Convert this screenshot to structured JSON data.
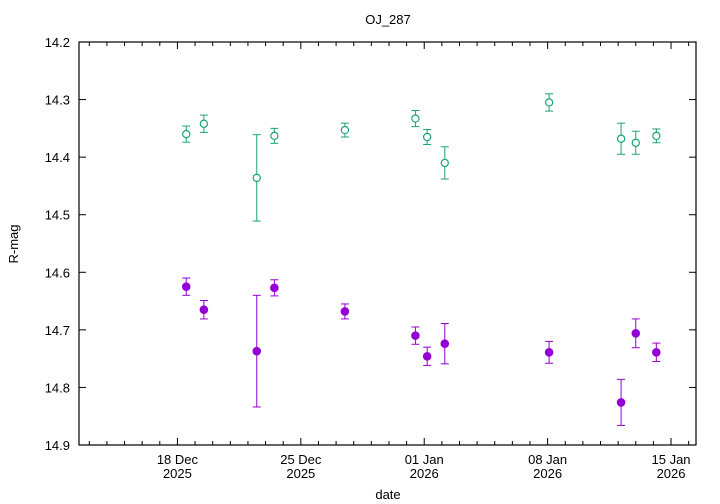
{
  "chart_data": {
    "type": "scatter",
    "title": "OJ_287",
    "xlabel": "date",
    "ylabel": "R-mag",
    "ylim": [
      14.2,
      14.9
    ],
    "y_inverted": true,
    "xlim": [
      "2025-12-12T10:00",
      "2026-01-16T10:00"
    ],
    "x_ticks": [
      {
        "date": "2025-12-18",
        "line1": "18 Dec",
        "line2": "2025"
      },
      {
        "date": "2025-12-25",
        "line1": "25 Dec",
        "line2": "2025"
      },
      {
        "date": "2026-01-01",
        "line1": "01 Jan",
        "line2": "2026"
      },
      {
        "date": "2026-01-08",
        "line1": "08 Jan",
        "line2": "2026"
      },
      {
        "date": "2026-01-15",
        "line1": "15 Jan",
        "line2": "2026"
      }
    ],
    "y_ticks": [
      "14.2",
      "14.3",
      "14.4",
      "14.5",
      "14.6",
      "14.7",
      "14.8",
      "14.9"
    ],
    "grid": false,
    "series": [
      {
        "marker": "open-circle",
        "color": "#1aa37a",
        "points": [
          {
            "x": "2025-12-18T12:00",
            "y": 14.36,
            "err": 0.014
          },
          {
            "x": "2025-12-19T12:00",
            "y": 14.342,
            "err": 0.015
          },
          {
            "x": "2025-12-22T12:00",
            "y": 14.436,
            "err": 0.075
          },
          {
            "x": "2025-12-23T12:00",
            "y": 14.363,
            "err": 0.013
          },
          {
            "x": "2025-12-27T12:00",
            "y": 14.353,
            "err": 0.012
          },
          {
            "x": "2025-12-31T12:00",
            "y": 14.333,
            "err": 0.014
          },
          {
            "x": "2026-01-01T04:00",
            "y": 14.365,
            "err": 0.013
          },
          {
            "x": "2026-01-02T04:00",
            "y": 14.41,
            "err": 0.028
          },
          {
            "x": "2026-01-08T02:00",
            "y": 14.305,
            "err": 0.015
          },
          {
            "x": "2026-01-12T04:00",
            "y": 14.368,
            "err": 0.027
          },
          {
            "x": "2026-01-13T00:00",
            "y": 14.375,
            "err": 0.02
          },
          {
            "x": "2026-01-14T04:00",
            "y": 14.363,
            "err": 0.012
          }
        ]
      },
      {
        "marker": "filled-circle",
        "color": "#9400d3",
        "points": [
          {
            "x": "2025-12-18T12:00",
            "y": 14.625,
            "err": 0.015
          },
          {
            "x": "2025-12-19T12:00",
            "y": 14.665,
            "err": 0.016
          },
          {
            "x": "2025-12-22T12:00",
            "y": 14.737,
            "err": 0.097
          },
          {
            "x": "2025-12-23T12:00",
            "y": 14.627,
            "err": 0.014
          },
          {
            "x": "2025-12-27T12:00",
            "y": 14.668,
            "err": 0.013
          },
          {
            "x": "2025-12-31T12:00",
            "y": 14.71,
            "err": 0.015
          },
          {
            "x": "2026-01-01T04:00",
            "y": 14.746,
            "err": 0.016
          },
          {
            "x": "2026-01-02T04:00",
            "y": 14.724,
            "err": 0.035
          },
          {
            "x": "2026-01-08T02:00",
            "y": 14.739,
            "err": 0.019
          },
          {
            "x": "2026-01-12T04:00",
            "y": 14.826,
            "err": 0.04
          },
          {
            "x": "2026-01-13T00:00",
            "y": 14.706,
            "err": 0.025
          },
          {
            "x": "2026-01-14T04:00",
            "y": 14.739,
            "err": 0.016
          }
        ]
      }
    ]
  }
}
